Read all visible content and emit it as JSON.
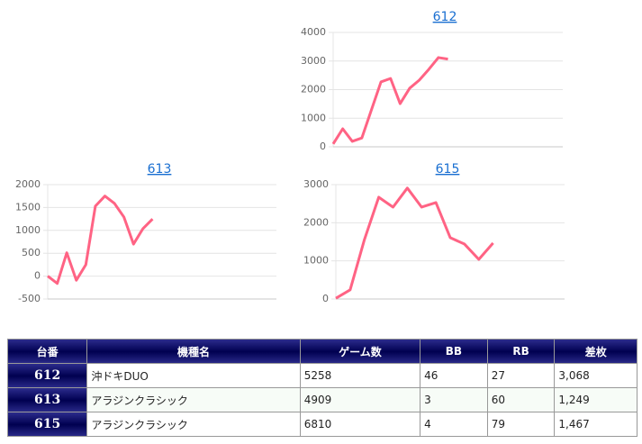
{
  "chart_data": [
    {
      "type": "line",
      "title": "612",
      "color": "#ff6384",
      "x": [
        0,
        1,
        2,
        3,
        4,
        5,
        6,
        7,
        8,
        9,
        10,
        11,
        12
      ],
      "values": [
        100,
        630,
        190,
        310,
        1290,
        2270,
        2390,
        1510,
        2050,
        2330,
        2710,
        3120,
        3068
      ],
      "xlim": [
        0,
        24
      ],
      "ylim": [
        0,
        4000
      ],
      "yticks": [
        0,
        1000,
        2000,
        3000,
        4000
      ],
      "grid": true
    },
    {
      "type": "line",
      "title": "613",
      "color": "#ff6384",
      "x": [
        0,
        1,
        2,
        3,
        4,
        5,
        6,
        7,
        8,
        9,
        10,
        11
      ],
      "values": [
        0,
        -160,
        510,
        -90,
        250,
        1530,
        1750,
        1590,
        1290,
        700,
        1040,
        1249
      ],
      "xlim": [
        0,
        24
      ],
      "ylim": [
        -500,
        2000
      ],
      "yticks": [
        -500,
        0,
        500,
        1000,
        1500,
        2000
      ],
      "grid": true
    },
    {
      "type": "line",
      "title": "615",
      "color": "#ff6384",
      "x": [
        0,
        1,
        2,
        3,
        4,
        5,
        6,
        7,
        8,
        9,
        10,
        11
      ],
      "values": [
        20,
        240,
        1560,
        2670,
        2410,
        2910,
        2410,
        2530,
        1610,
        1440,
        1040,
        1467
      ],
      "xlim": [
        0,
        16
      ],
      "ylim": [
        0,
        3000
      ],
      "yticks": [
        0,
        1000,
        2000,
        3000
      ],
      "grid": true
    }
  ],
  "table": {
    "header": [
      "台番",
      "機種名",
      "ゲーム数",
      "BB",
      "RB",
      "差枚"
    ],
    "rows": [
      [
        "612",
        "沖ドキDUO",
        "5258",
        "46",
        "27",
        "3,068"
      ],
      [
        "613",
        "アラジンクラシック",
        "4909",
        "3",
        "60",
        "1,249"
      ],
      [
        "615",
        "アラジンクラシック",
        "6810",
        "4",
        "79",
        "1,467"
      ]
    ]
  }
}
